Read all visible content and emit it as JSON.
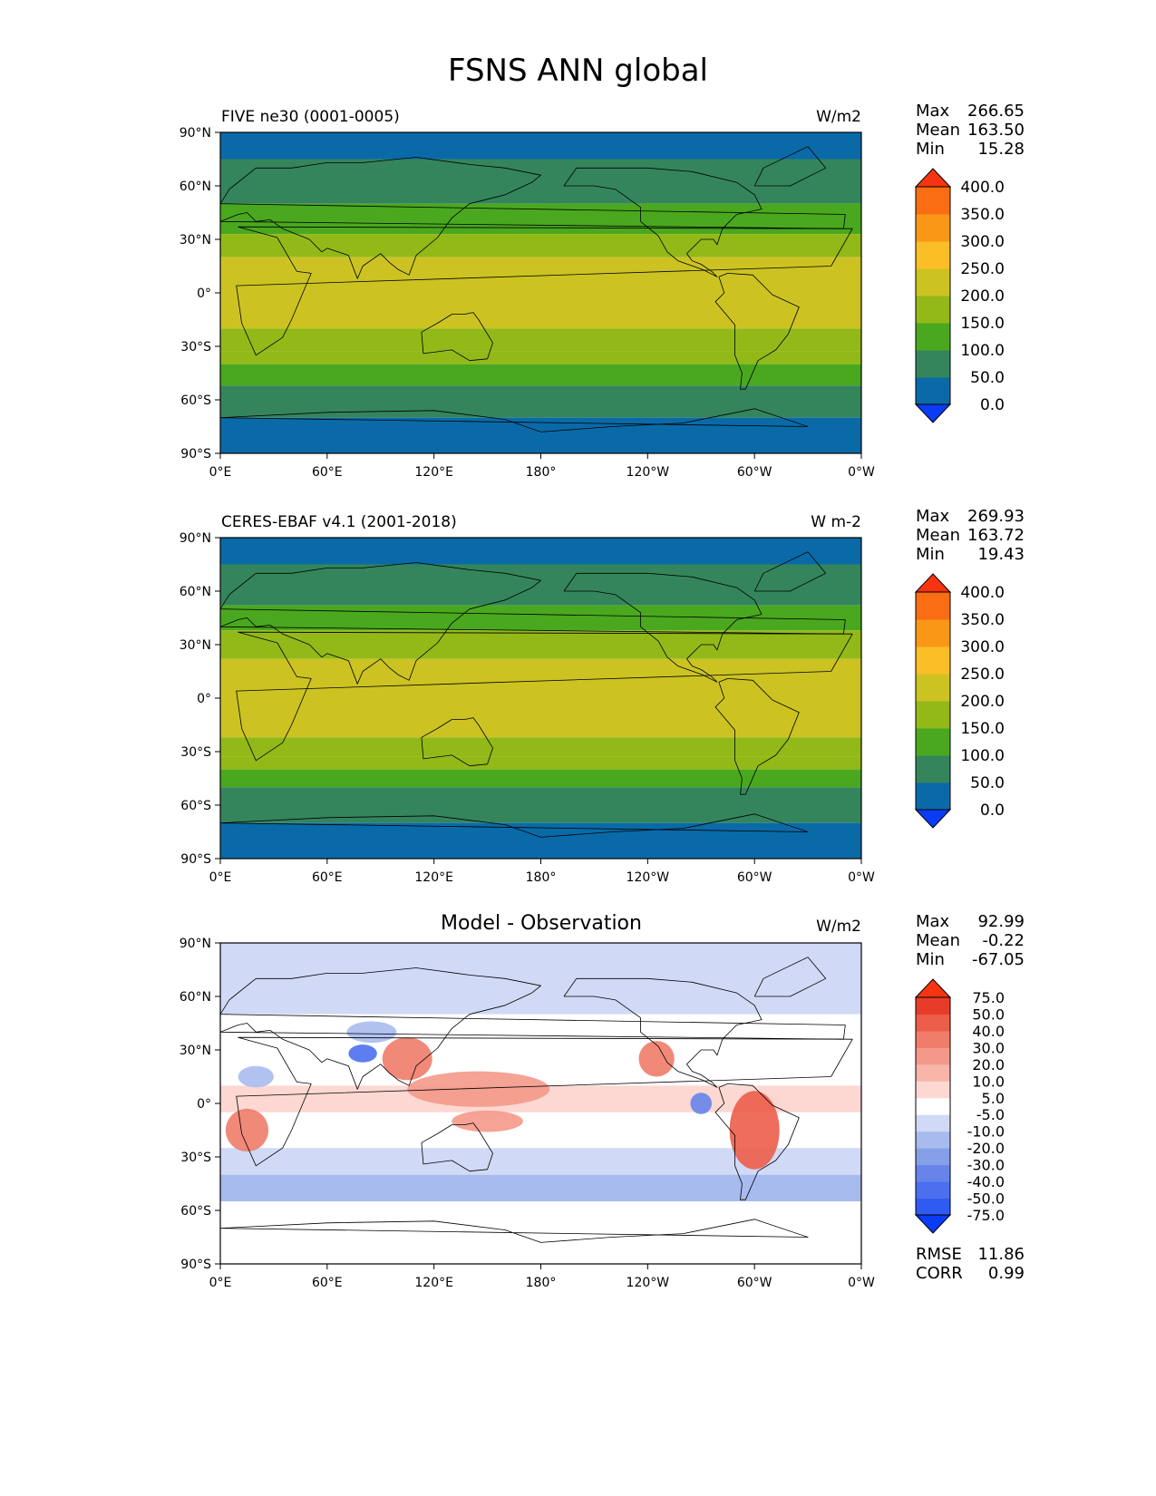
{
  "title": "FSNS ANN global",
  "chart_data": [
    {
      "type": "heatmap",
      "map": "global-lat-lon",
      "title_left": "FIVE ne30 (0001-0005)",
      "units": "W/m2",
      "lat_ticks": [
        "90°N",
        "60°N",
        "30°N",
        "0°",
        "30°S",
        "60°S",
        "90°S"
      ],
      "lon_ticks": [
        "0°E",
        "60°E",
        "120°E",
        "180°",
        "120°W",
        "60°W",
        "0°W"
      ],
      "stats": {
        "max_label": "Max",
        "max": "266.65",
        "mean_label": "Mean",
        "mean": "163.50",
        "min_label": "Min",
        "min": "15.28"
      },
      "colorbar": {
        "levels": [
          "0.0",
          "50.0",
          "100.0",
          "150.0",
          "200.0",
          "250.0",
          "300.0",
          "350.0",
          "400.0"
        ],
        "colors": [
          "#0a3cf5",
          "#0a6aa8",
          "#34855c",
          "#4aa81f",
          "#92b918",
          "#ccc322",
          "#fbbe26",
          "#fb9717",
          "#fa6d12",
          "#f73411"
        ]
      },
      "bands": [
        {
          "lat_from": 90,
          "lat_to": 75,
          "value": 30
        },
        {
          "lat_from": 75,
          "lat_to": 50,
          "value": 75
        },
        {
          "lat_from": 50,
          "lat_to": 33,
          "value": 130
        },
        {
          "lat_from": 33,
          "lat_to": 20,
          "value": 175
        },
        {
          "lat_from": 20,
          "lat_to": -20,
          "value": 225
        },
        {
          "lat_from": -20,
          "lat_to": -33,
          "value": 190
        },
        {
          "lat_from": -33,
          "lat_to": -40,
          "value": 160
        },
        {
          "lat_from": -40,
          "lat_to": -52,
          "value": 120
        },
        {
          "lat_from": -52,
          "lat_to": -70,
          "value": 80
        },
        {
          "lat_from": -70,
          "lat_to": -90,
          "value": 30
        }
      ]
    },
    {
      "type": "heatmap",
      "map": "global-lat-lon",
      "title_left": "CERES-EBAF v4.1 (2001-2018)",
      "units": "W m-2",
      "lat_ticks": [
        "90°N",
        "60°N",
        "30°N",
        "0°",
        "30°S",
        "60°S",
        "90°S"
      ],
      "lon_ticks": [
        "0°E",
        "60°E",
        "120°E",
        "180°",
        "120°W",
        "60°W",
        "0°W"
      ],
      "stats": {
        "max_label": "Max",
        "max": "269.93",
        "mean_label": "Mean",
        "mean": "163.72",
        "min_label": "Min",
        "min": "19.43"
      },
      "colorbar": {
        "levels": [
          "0.0",
          "50.0",
          "100.0",
          "150.0",
          "200.0",
          "250.0",
          "300.0",
          "350.0",
          "400.0"
        ],
        "colors": [
          "#0a3cf5",
          "#0a6aa8",
          "#34855c",
          "#4aa81f",
          "#92b918",
          "#ccc322",
          "#fbbe26",
          "#fb9717",
          "#fa6d12",
          "#f73411"
        ]
      },
      "bands": [
        {
          "lat_from": 90,
          "lat_to": 75,
          "value": 30
        },
        {
          "lat_from": 75,
          "lat_to": 52,
          "value": 75
        },
        {
          "lat_from": 52,
          "lat_to": 38,
          "value": 125
        },
        {
          "lat_from": 38,
          "lat_to": 22,
          "value": 175
        },
        {
          "lat_from": 22,
          "lat_to": -22,
          "value": 225
        },
        {
          "lat_from": -22,
          "lat_to": -33,
          "value": 190
        },
        {
          "lat_from": -33,
          "lat_to": -40,
          "value": 160
        },
        {
          "lat_from": -40,
          "lat_to": -50,
          "value": 120
        },
        {
          "lat_from": -50,
          "lat_to": -70,
          "value": 80
        },
        {
          "lat_from": -70,
          "lat_to": -90,
          "value": 30
        }
      ]
    },
    {
      "type": "heatmap",
      "map": "global-lat-lon",
      "title_center": "Model - Observation",
      "units": "W/m2",
      "lat_ticks": [
        "90°N",
        "60°N",
        "30°N",
        "0°",
        "30°S",
        "60°S",
        "90°S"
      ],
      "lon_ticks": [
        "0°E",
        "60°E",
        "120°E",
        "180°",
        "120°W",
        "60°W",
        "0°W"
      ],
      "stats": {
        "max_label": "Max",
        "max": "92.99",
        "mean_label": "Mean",
        "mean": "-0.22",
        "min_label": "Min",
        "min": "-67.05"
      },
      "extra_stats": {
        "rmse_label": "RMSE",
        "rmse": "11.86",
        "corr_label": "CORR",
        "corr": "0.99"
      },
      "colorbar": {
        "levels": [
          "-75.0",
          "-50.0",
          "-40.0",
          "-30.0",
          "-20.0",
          "-10.0",
          "-5.0",
          "5.0",
          "10.0",
          "20.0",
          "30.0",
          "40.0",
          "50.0",
          "75.0"
        ],
        "colors": [
          "#0a3cf5",
          "#2f5bf2",
          "#4b6fee",
          "#6684ea",
          "#859fe8",
          "#a8bbee",
          "#d0daf6",
          "#ffffff",
          "#fdd8d2",
          "#f8b6aa",
          "#f4998a",
          "#f07c6a",
          "#ec5d4a",
          "#e83c2a",
          "#f73411"
        ]
      },
      "bands": [
        {
          "lat_from": 90,
          "lat_to": 75,
          "value": -8
        },
        {
          "lat_from": 75,
          "lat_to": 50,
          "value": -6
        },
        {
          "lat_from": 50,
          "lat_to": 10,
          "value": 0
        },
        {
          "lat_from": 10,
          "lat_to": -5,
          "value": 6
        },
        {
          "lat_from": -5,
          "lat_to": -25,
          "value": 0
        },
        {
          "lat_from": -25,
          "lat_to": -40,
          "value": -6
        },
        {
          "lat_from": -40,
          "lat_to": -55,
          "value": -12
        },
        {
          "lat_from": -55,
          "lat_to": -90,
          "value": 0
        }
      ],
      "anomalies": [
        {
          "lon": 145,
          "lat": 8,
          "rx": 40,
          "ry": 10,
          "value": 25
        },
        {
          "lon": 105,
          "lat": 25,
          "rx": 14,
          "ry": 12,
          "value": 35
        },
        {
          "lon": 80,
          "lat": 28,
          "rx": 8,
          "ry": 5,
          "value": -45
        },
        {
          "lon": 15,
          "lat": -15,
          "rx": 12,
          "ry": 12,
          "value": 35
        },
        {
          "lon": 300,
          "lat": -15,
          "rx": 14,
          "ry": 22,
          "value": 45
        },
        {
          "lon": 245,
          "lat": 25,
          "rx": 10,
          "ry": 10,
          "value": 30
        },
        {
          "lon": 270,
          "lat": 0,
          "rx": 6,
          "ry": 6,
          "value": -40
        },
        {
          "lon": 20,
          "lat": 15,
          "rx": 10,
          "ry": 6,
          "value": -15
        },
        {
          "lon": 150,
          "lat": -10,
          "rx": 20,
          "ry": 6,
          "value": 20
        },
        {
          "lon": 85,
          "lat": 40,
          "rx": 14,
          "ry": 6,
          "value": -20
        }
      ]
    }
  ]
}
